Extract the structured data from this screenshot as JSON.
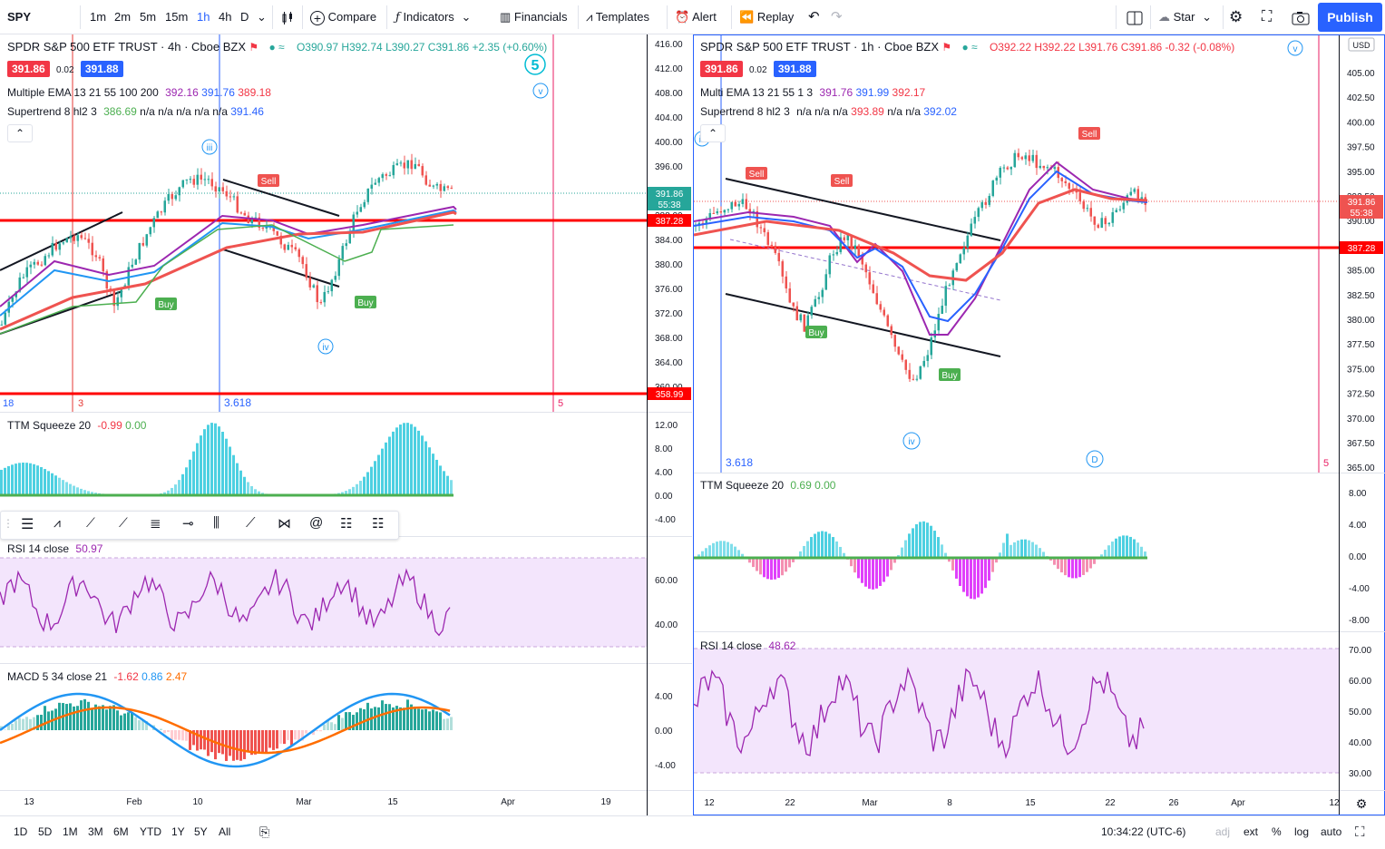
{
  "toolbar": {
    "symbol": "SPY",
    "intervals": [
      "1m",
      "2m",
      "5m",
      "15m",
      "1h",
      "4h",
      "D"
    ],
    "active_interval": "1h",
    "compare": "Compare",
    "indicators": "Indicators",
    "financials": "Financials",
    "templates": "Templates",
    "alert": "Alert",
    "replay": "Replay",
    "star": "Star",
    "publish": "Publish"
  },
  "left_chart": {
    "title": "SPDR S&P 500 ETF TRUST · 4h · Cboe BZX",
    "ohlc": {
      "o": "O390.97",
      "h": "H392.74",
      "l": "L390.27",
      "c": "C391.86",
      "chg": "+2.35 (+0.60%)"
    },
    "bid": "391.86",
    "spread": "0.02",
    "ask": "391.88",
    "ema_label": "Multiple EMA 13 21 55 100 200",
    "ema_vals": [
      "392.16",
      "391.76",
      "389.18"
    ],
    "st_label": "Supertrend 8 hl2 3",
    "st_vals": [
      "386.69",
      "n/a n/a n/a n/a n/a"
    ],
    "st_last": "391.46",
    "price_ticks": [
      "416.00",
      "412.00",
      "408.00",
      "404.00",
      "400.00",
      "396.00",
      "392.00",
      "388.00",
      "384.00",
      "380.00",
      "376.00",
      "372.00",
      "368.00",
      "364.00",
      "360.00"
    ],
    "price_tag": "391.86",
    "countdown": "55:38",
    "line_tag_1": "387.28",
    "line_tag_2": "358.99",
    "fib_1": "3.618",
    "fib_left": "18",
    "fib_3": "3",
    "fib_5": "5",
    "wave_5": "5",
    "wave_iii": "iii",
    "wave_iv": "iv",
    "wave_v": "v",
    "sell": "Sell",
    "buy_1": "Buy",
    "buy_2": "Buy",
    "ttm_label": "TTM Squeeze 20",
    "ttm_v1": "-0.99",
    "ttm_v2": "0.00",
    "ttm_ticks": [
      "12.00",
      "8.00",
      "4.00",
      "0.00",
      "-4.00"
    ],
    "rsi_label": "RSI 14 close",
    "rsi_val": "50.97",
    "rsi_ticks": [
      "60.00",
      "40.00"
    ],
    "macd_label": "MACD 5 34 close 21",
    "macd_vals": [
      "-1.62",
      "0.86",
      "2.47"
    ],
    "macd_ticks": [
      "4.00",
      "0.00",
      "-4.00"
    ],
    "time_ticks": [
      "13",
      "Feb",
      "10",
      "Mar",
      "15",
      "Apr",
      "19"
    ]
  },
  "right_chart": {
    "title": "SPDR S&P 500 ETF TRUST · 1h · Cboe BZX",
    "ohlc": {
      "o": "O392.22",
      "h": "H392.22",
      "l": "L391.76",
      "c": "C391.86",
      "chg": "-0.32 (-0.08%)"
    },
    "bid": "391.86",
    "spread": "0.02",
    "ask": "391.88",
    "ema_label": "Multi EMA 13 21 55 1 3",
    "ema_vals": [
      "391.76",
      "391.99",
      "392.17"
    ],
    "st_label": "Supertrend 8 hl2 3",
    "st_vals": [
      "n/a n/a n/a",
      "393.89",
      "n/a n/a",
      "392.02"
    ],
    "currency": "USD",
    "price_ticks": [
      "405.00",
      "402.50",
      "400.00",
      "397.50",
      "395.00",
      "392.50",
      "390.00",
      "387.50",
      "385.00",
      "382.50",
      "380.00",
      "377.50",
      "375.00",
      "372.50",
      "370.00",
      "367.50",
      "365.00"
    ],
    "price_tag": "391.86",
    "countdown": "55:38",
    "line_tag": "387.28",
    "fib_1": "3.618",
    "fib_5": "5",
    "wave_iii": "iii",
    "wave_iv": "iv",
    "wave_v": "v",
    "wave_D": "D",
    "sell_1": "Sell",
    "sell_2": "Sell",
    "sell_3": "Sell",
    "buy_1": "Buy",
    "buy_2": "Buy",
    "ttm_label": "TTM Squeeze 20",
    "ttm_v1": "0.69",
    "ttm_v2": "0.00",
    "ttm_ticks": [
      "8.00",
      "4.00",
      "0.00",
      "-4.00",
      "-8.00"
    ],
    "rsi_label": "RSI 14 close",
    "rsi_val": "48.62",
    "rsi_ticks": [
      "70.00",
      "60.00",
      "50.00",
      "40.00",
      "30.00"
    ],
    "time_ticks": [
      "12",
      "22",
      "Mar",
      "8",
      "15",
      "22",
      "26",
      "Apr",
      "12"
    ]
  },
  "bottombar": {
    "ranges": [
      "1D",
      "5D",
      "1M",
      "3M",
      "6M",
      "YTD",
      "1Y",
      "5Y",
      "All"
    ],
    "time": "10:34:22 (UTC-6)",
    "adj": "adj",
    "ext": "ext",
    "pct": "%",
    "log": "log",
    "auto": "auto"
  },
  "colors": {
    "accent": "#2962ff",
    "up": "#26a69a",
    "down": "#ef5350",
    "red_line": "#ff0000",
    "rsi_fill": "#f3e5fc",
    "rsi_line": "#9c27b0"
  }
}
